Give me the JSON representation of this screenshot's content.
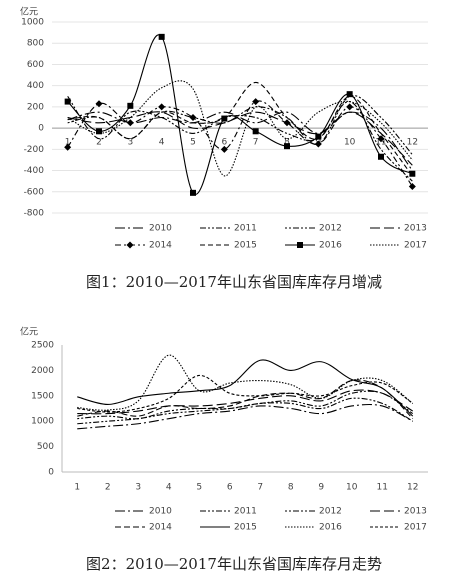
{
  "chart_data": [
    {
      "type": "line",
      "title": "图1：2010—2017年山东省国库库存月增减",
      "y_label": "亿元",
      "categories": [
        "1",
        "2",
        "3",
        "4",
        "5",
        "6",
        "7",
        "8",
        "9",
        "10",
        "11",
        "12"
      ],
      "ylim": [
        -800,
        1000
      ],
      "yticks": [
        -800,
        -600,
        -400,
        -200,
        0,
        200,
        400,
        600,
        800,
        1000
      ],
      "grid": true,
      "legend": "bottom",
      "series": [
        {
          "name": "2010",
          "color": "#000",
          "dash": "10 3 2 3",
          "marker": "none",
          "values": [
            80,
            150,
            50,
            100,
            50,
            150,
            50,
            150,
            -50,
            150,
            0,
            -400
          ]
        },
        {
          "name": "2011",
          "color": "#000",
          "dash": "6 2 2 2 2 2",
          "marker": "none",
          "values": [
            300,
            -100,
            150,
            100,
            -50,
            100,
            100,
            -50,
            -100,
            250,
            -200,
            -500
          ]
        },
        {
          "name": "2012",
          "color": "#000",
          "dash": "2 2 2 2 6 2",
          "marker": "none",
          "values": [
            50,
            100,
            -100,
            150,
            100,
            50,
            200,
            100,
            -150,
            300,
            100,
            -250
          ]
        },
        {
          "name": "2013",
          "color": "#000",
          "dash": "10 4",
          "marker": "none",
          "values": [
            100,
            50,
            100,
            150,
            0,
            50,
            150,
            50,
            -50,
            150,
            -50,
            -350
          ]
        },
        {
          "name": "2014",
          "color": "#000",
          "dash": "6 3 2 3",
          "marker": "diamond",
          "values": [
            -180,
            230,
            50,
            200,
            100,
            -200,
            250,
            50,
            -150,
            200,
            -100,
            -550
          ]
        },
        {
          "name": "2015",
          "color": "#000",
          "dash": "5 3",
          "marker": "none",
          "values": [
            80,
            100,
            -100,
            150,
            50,
            100,
            430,
            100,
            -100,
            300,
            -50,
            -450
          ]
        },
        {
          "name": "2016",
          "color": "#000",
          "dash": "none",
          "marker": "square",
          "values": [
            250,
            -30,
            210,
            860,
            -610,
            90,
            -30,
            -170,
            -80,
            320,
            -270,
            -430
          ]
        },
        {
          "name": "2017",
          "color": "#000",
          "dash": "1.5 1.5",
          "marker": "none",
          "values": [
            100,
            -50,
            100,
            380,
            370,
            -450,
            200,
            -100,
            150,
            250,
            50,
            -300
          ]
        }
      ]
    },
    {
      "type": "line",
      "title": "图2：2010—2017年山东省国库库存月走势",
      "y_label": "亿元",
      "categories": [
        "1",
        "2",
        "3",
        "4",
        "5",
        "6",
        "7",
        "8",
        "9",
        "10",
        "11",
        "12"
      ],
      "ylim": [
        0,
        2500
      ],
      "yticks": [
        0,
        500,
        1000,
        1500,
        2000,
        2500
      ],
      "grid": false,
      "legend": "bottom",
      "series": [
        {
          "name": "2010",
          "color": "#000",
          "dash": "10 3 2 3",
          "marker": "none",
          "values": [
            850,
            900,
            950,
            1050,
            1150,
            1200,
            1300,
            1250,
            1150,
            1300,
            1300,
            1000
          ]
        },
        {
          "name": "2011",
          "color": "#000",
          "dash": "6 2 2 2 2 2",
          "marker": "none",
          "values": [
            950,
            1000,
            1050,
            1150,
            1200,
            1250,
            1350,
            1350,
            1250,
            1450,
            1350,
            1000
          ]
        },
        {
          "name": "2012",
          "color": "#000",
          "dash": "2 2 2 2 6 2",
          "marker": "none",
          "values": [
            1050,
            1100,
            1050,
            1200,
            1250,
            1250,
            1350,
            1400,
            1300,
            1550,
            1550,
            1150
          ]
        },
        {
          "name": "2013",
          "color": "#000",
          "dash": "10 4",
          "marker": "none",
          "values": [
            1150,
            1150,
            1200,
            1300,
            1300,
            1350,
            1450,
            1500,
            1400,
            1600,
            1550,
            1200
          ]
        },
        {
          "name": "2014",
          "color": "#000",
          "dash": "6 3",
          "marker": "none",
          "values": [
            1100,
            1200,
            1100,
            1300,
            1250,
            1300,
            1500,
            1550,
            1450,
            1800,
            1650,
            1050
          ]
        },
        {
          "name": "2015",
          "color": "#000",
          "dash": "none",
          "marker": "none",
          "values": [
            1480,
            1330,
            1480,
            1550,
            1600,
            1700,
            2200,
            2000,
            2170,
            1820,
            1650,
            1100
          ]
        },
        {
          "name": "2016",
          "color": "#000",
          "dash": "1.5 1.5",
          "marker": "none",
          "values": [
            1270,
            1220,
            1400,
            2300,
            1600,
            1750,
            1800,
            1720,
            1450,
            1800,
            1800,
            1350
          ]
        },
        {
          "name": "2017",
          "color": "#000",
          "dash": "3 2",
          "marker": "none",
          "values": [
            1250,
            1180,
            1250,
            1450,
            1900,
            1550,
            1500,
            1550,
            1500,
            1700,
            1750,
            1350
          ]
        }
      ]
    }
  ]
}
